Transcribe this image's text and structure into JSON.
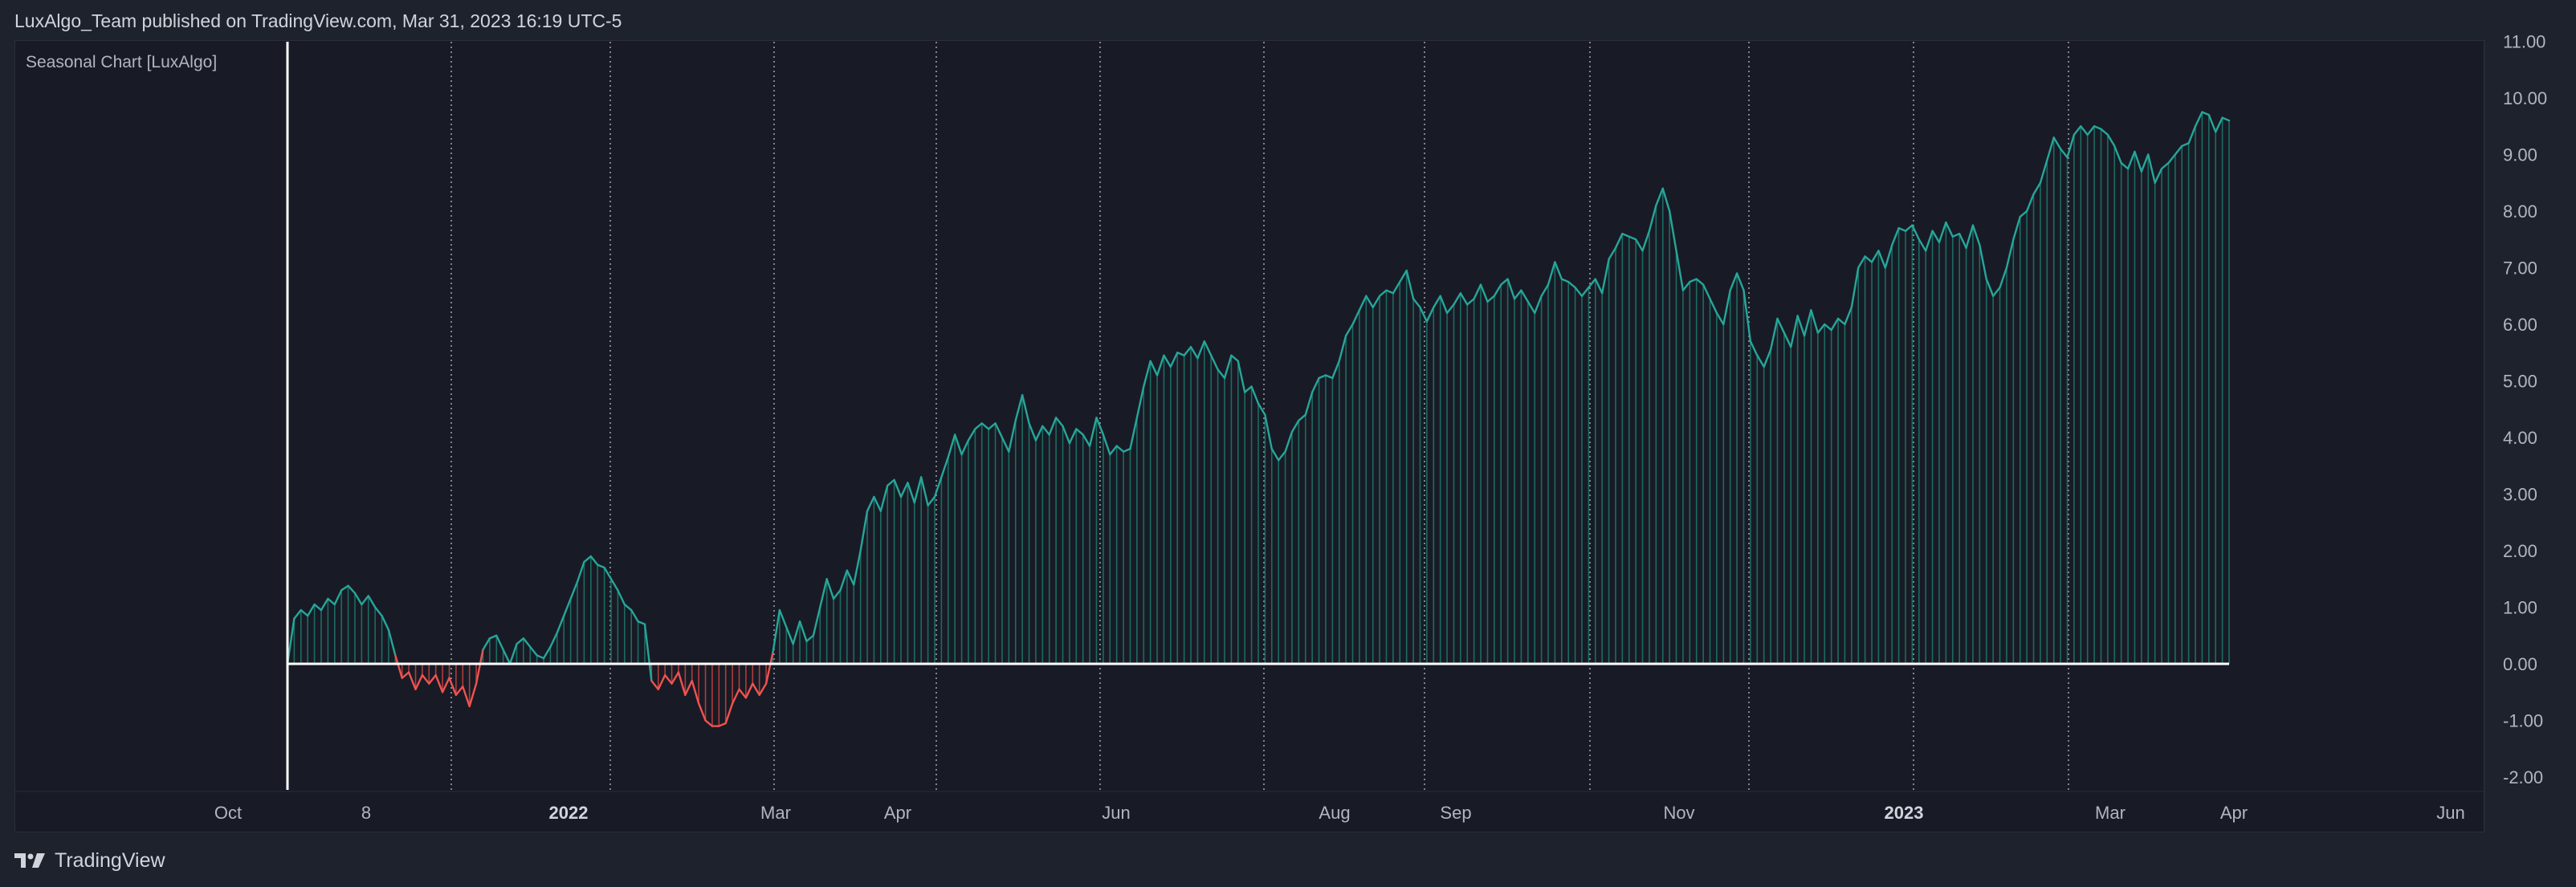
{
  "header": {
    "text": "LuxAlgo_Team published on TradingView.com, Mar 31, 2023 16:19 UTC-5"
  },
  "indicator": {
    "label": "Seasonal Chart [LuxAlgo]"
  },
  "footer": {
    "brand": "TradingView",
    "logo_icon": "tradingview-logo-icon"
  },
  "colors": {
    "background": "#1e222d",
    "pane": "#181b25",
    "positive": "#26a69a",
    "positive_fill": "#1d6b63",
    "negative": "#ef5350",
    "negative_fill": "#b03c3c",
    "zero_line": "#ffffff",
    "month_divider": "#d1d4dc",
    "axis_text": "#b2b5be"
  },
  "chart_data": {
    "type": "area",
    "title": "",
    "xlabel": "",
    "ylabel": "",
    "ylim": [
      -2.4,
      11.4
    ],
    "grid": false,
    "y_ticks": [
      "11.00",
      "10.00",
      "9.00",
      "8.00",
      "7.00",
      "6.00",
      "5.00",
      "4.00",
      "3.00",
      "2.00",
      "1.00",
      "0.00",
      "-1.00",
      "-2.00"
    ],
    "x_ticks": [
      {
        "label": "Oct",
        "bold": false
      },
      {
        "label": "8",
        "bold": false
      },
      {
        "label": "2022",
        "bold": true
      },
      {
        "label": "Mar",
        "bold": false
      },
      {
        "label": "Apr",
        "bold": false
      },
      {
        "label": "Jun",
        "bold": false
      },
      {
        "label": "Aug",
        "bold": false
      },
      {
        "label": "Sep",
        "bold": false
      },
      {
        "label": "Nov",
        "bold": false
      },
      {
        "label": "2023",
        "bold": true
      },
      {
        "label": "Mar",
        "bold": false
      },
      {
        "label": "Apr",
        "bold": false
      },
      {
        "label": "Jun",
        "bold": false
      }
    ],
    "series": [
      {
        "values": [
          0,
          0.8,
          0.95,
          0.85,
          1.05,
          0.95,
          1.15,
          1.05,
          1.3,
          1.38,
          1.25,
          1.05,
          1.2,
          1.0,
          0.85,
          0.6,
          0.15,
          -0.25,
          -0.15,
          -0.45,
          -0.2,
          -0.35,
          -0.2,
          -0.5,
          -0.25,
          -0.55,
          -0.4,
          -0.75,
          -0.35,
          0.25,
          0.45,
          0.5,
          0.25,
          0.0,
          0.35,
          0.45,
          0.3,
          0.15,
          0.1,
          0.3,
          0.55,
          0.85,
          1.15,
          1.45,
          1.8,
          1.9,
          1.75,
          1.7,
          1.5,
          1.3,
          1.05,
          0.95,
          0.75,
          0.7,
          -0.3,
          -0.45,
          -0.2,
          -0.35,
          -0.15,
          -0.55,
          -0.3,
          -0.7,
          -1.0,
          -1.1,
          -1.1,
          -1.05,
          -0.7,
          -0.45,
          -0.6,
          -0.35,
          -0.55,
          -0.35,
          0.2,
          0.95,
          0.65,
          0.35,
          0.75,
          0.4,
          0.5,
          1.0,
          1.5,
          1.15,
          1.3,
          1.65,
          1.4,
          2.0,
          2.7,
          2.95,
          2.7,
          3.15,
          3.25,
          2.95,
          3.2,
          2.85,
          3.3,
          2.8,
          2.95,
          3.3,
          3.65,
          4.05,
          3.7,
          3.95,
          4.15,
          4.25,
          4.15,
          4.25,
          4.0,
          3.75,
          4.3,
          4.75,
          4.25,
          3.95,
          4.2,
          4.05,
          4.35,
          4.2,
          3.9,
          4.15,
          4.05,
          3.85,
          4.35,
          4.05,
          3.7,
          3.85,
          3.75,
          3.8,
          4.35,
          4.9,
          5.35,
          5.1,
          5.45,
          5.25,
          5.5,
          5.45,
          5.6,
          5.4,
          5.7,
          5.45,
          5.2,
          5.05,
          5.45,
          5.35,
          4.8,
          4.9,
          4.6,
          4.4,
          3.8,
          3.6,
          3.75,
          4.1,
          4.3,
          4.4,
          4.8,
          5.05,
          5.1,
          5.05,
          5.35,
          5.8,
          6.0,
          6.25,
          6.5,
          6.3,
          6.5,
          6.6,
          6.55,
          6.75,
          6.95,
          6.45,
          6.3,
          6.05,
          6.3,
          6.5,
          6.2,
          6.35,
          6.55,
          6.35,
          6.45,
          6.7,
          6.4,
          6.5,
          6.7,
          6.8,
          6.45,
          6.6,
          6.4,
          6.2,
          6.5,
          6.7,
          7.1,
          6.8,
          6.75,
          6.65,
          6.5,
          6.65,
          6.8,
          6.55,
          7.15,
          7.35,
          7.6,
          7.55,
          7.5,
          7.3,
          7.65,
          8.1,
          8.4,
          8.0,
          7.3,
          6.6,
          6.75,
          6.8,
          6.7,
          6.45,
          6.2,
          6.0,
          6.6,
          6.9,
          6.6,
          5.7,
          5.45,
          5.25,
          5.55,
          6.1,
          5.85,
          5.6,
          6.15,
          5.8,
          6.25,
          5.85,
          6.0,
          5.9,
          6.1,
          6.0,
          6.3,
          7.0,
          7.2,
          7.1,
          7.3,
          7.0,
          7.4,
          7.7,
          7.65,
          7.75,
          7.5,
          7.3,
          7.65,
          7.45,
          7.8,
          7.55,
          7.6,
          7.35,
          7.75,
          7.4,
          6.8,
          6.5,
          6.65,
          7.0,
          7.5,
          7.9,
          8.0,
          8.3,
          8.5,
          8.9,
          9.3,
          9.1,
          8.95,
          9.35,
          9.5,
          9.35,
          9.5,
          9.45,
          9.35,
          9.15,
          8.85,
          8.75,
          9.05,
          8.7,
          9.0,
          8.5,
          8.75,
          8.85,
          9.0,
          9.15,
          9.2,
          9.5,
          9.75,
          9.7,
          9.4,
          9.65,
          9.6
        ]
      }
    ]
  }
}
